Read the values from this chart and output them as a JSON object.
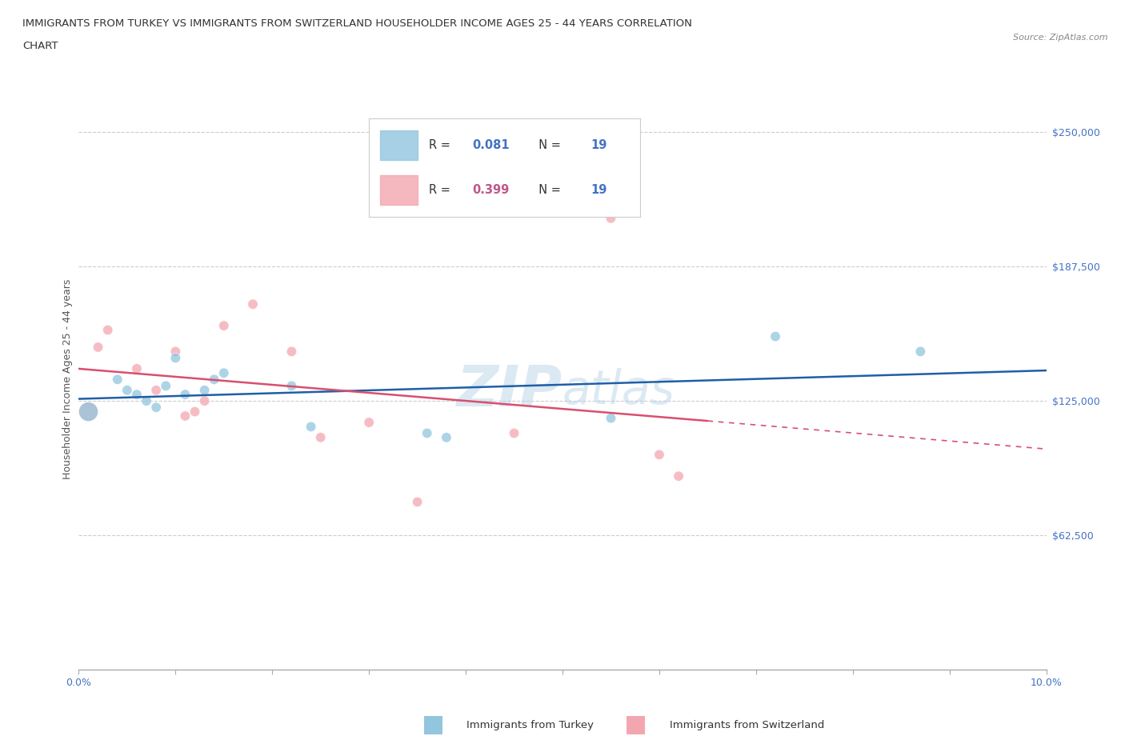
{
  "title_line1": "IMMIGRANTS FROM TURKEY VS IMMIGRANTS FROM SWITZERLAND HOUSEHOLDER INCOME AGES 25 - 44 YEARS CORRELATION",
  "title_line2": "CHART",
  "source": "Source: ZipAtlas.com",
  "ylabel": "Householder Income Ages 25 - 44 years",
  "xlim": [
    0.0,
    0.1
  ],
  "ylim": [
    0,
    270000
  ],
  "yticks": [
    0,
    62500,
    125000,
    187500,
    250000
  ],
  "ytick_labels": [
    "",
    "$62,500",
    "$125,000",
    "$187,500",
    "$250,000"
  ],
  "xticks": [
    0.0,
    0.01,
    0.02,
    0.03,
    0.04,
    0.05,
    0.06,
    0.07,
    0.08,
    0.09,
    0.1
  ],
  "xtick_labels": [
    "0.0%",
    "",
    "",
    "",
    "",
    "",
    "",
    "",
    "",
    "",
    "10.0%"
  ],
  "grid_color": "#cccccc",
  "turkey_color": "#92c5de",
  "switzerland_color": "#f4a6b0",
  "turkey_R": 0.081,
  "turkey_N": 19,
  "switzerland_R": 0.399,
  "switzerland_N": 19,
  "turkey_scatter_x": [
    0.001,
    0.004,
    0.005,
    0.006,
    0.007,
    0.008,
    0.009,
    0.01,
    0.011,
    0.013,
    0.014,
    0.015,
    0.022,
    0.024,
    0.036,
    0.038,
    0.055,
    0.072,
    0.087
  ],
  "turkey_scatter_y": [
    120000,
    135000,
    130000,
    128000,
    125000,
    122000,
    132000,
    145000,
    128000,
    130000,
    135000,
    138000,
    132000,
    113000,
    110000,
    108000,
    117000,
    155000,
    148000
  ],
  "turkey_scatter_size": [
    300,
    80,
    80,
    80,
    80,
    80,
    80,
    80,
    80,
    80,
    80,
    80,
    80,
    80,
    80,
    80,
    80,
    80,
    80
  ],
  "switzerland_scatter_x": [
    0.001,
    0.002,
    0.003,
    0.006,
    0.008,
    0.01,
    0.011,
    0.012,
    0.013,
    0.015,
    0.018,
    0.022,
    0.025,
    0.03,
    0.035,
    0.045,
    0.055,
    0.06,
    0.062
  ],
  "switzerland_scatter_y": [
    120000,
    150000,
    158000,
    140000,
    130000,
    148000,
    118000,
    120000,
    125000,
    160000,
    170000,
    148000,
    108000,
    115000,
    78000,
    110000,
    210000,
    100000,
    90000
  ],
  "switzerland_scatter_size": [
    300,
    80,
    80,
    80,
    80,
    80,
    80,
    80,
    80,
    80,
    80,
    80,
    80,
    80,
    80,
    80,
    80,
    80,
    80
  ],
  "background_color": "#ffffff",
  "line_turkey_color": "#1f5fa6",
  "line_switzerland_color": "#d94f6e",
  "watermark_color": "#b8d4e8",
  "watermark_alpha": 0.5,
  "legend_text_color": "#333333",
  "legend_R_turkey_color": "#4472c4",
  "legend_R_switzerland_color": "#c0558a",
  "legend_N_color": "#4472c4",
  "ytick_color": "#4472c4",
  "xtick_color": "#4472c4"
}
